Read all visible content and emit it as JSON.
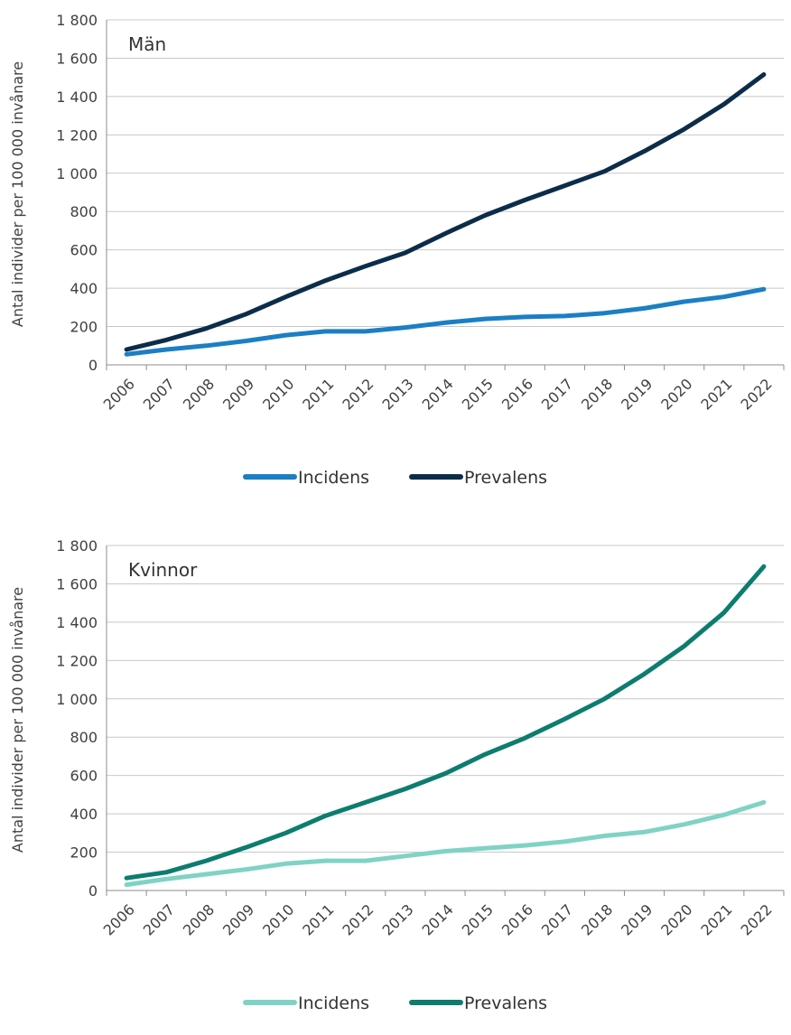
{
  "chart_data": [
    {
      "type": "line",
      "title": "Män",
      "ylabel": "Antal individer per 100 000 invånare",
      "xlabel": "",
      "ylim": [
        0,
        1800
      ],
      "yticks": [
        0,
        200,
        400,
        600,
        800,
        1000,
        1200,
        1400,
        1600,
        1800
      ],
      "ytick_labels": [
        "0",
        "200",
        "400",
        "600",
        "800",
        "1 000",
        "1 200",
        "1 400",
        "1 600",
        "1 800"
      ],
      "categories": [
        "2006",
        "2007",
        "2008",
        "2009",
        "2010",
        "2011",
        "2012",
        "2013",
        "2014",
        "2015",
        "2016",
        "2017",
        "2018",
        "2019",
        "2020",
        "2021",
        "2022"
      ],
      "series": [
        {
          "name": "Incidens",
          "color": "#1b7fc4",
          "values": [
            55,
            80,
            100,
            125,
            155,
            175,
            175,
            195,
            220,
            240,
            250,
            255,
            270,
            295,
            330,
            355,
            395
          ]
        },
        {
          "name": "Prevalens",
          "color": "#0b2d4a",
          "values": [
            80,
            130,
            190,
            265,
            355,
            440,
            515,
            585,
            685,
            780,
            860,
            935,
            1010,
            1115,
            1230,
            1360,
            1515
          ]
        }
      ],
      "legend": "bottom-center",
      "grid": true
    },
    {
      "type": "line",
      "title": "Kvinnor",
      "ylabel": "Antal individer per 100 000 invånare",
      "xlabel": "",
      "ylim": [
        0,
        1800
      ],
      "yticks": [
        0,
        200,
        400,
        600,
        800,
        1000,
        1200,
        1400,
        1600,
        1800
      ],
      "ytick_labels": [
        "0",
        "200",
        "400",
        "600",
        "800",
        "1 000",
        "1 200",
        "1 400",
        "1 600",
        "1 800"
      ],
      "categories": [
        "2006",
        "2007",
        "2008",
        "2009",
        "2010",
        "2011",
        "2012",
        "2013",
        "2014",
        "2015",
        "2016",
        "2017",
        "2018",
        "2019",
        "2020",
        "2021",
        "2022"
      ],
      "series": [
        {
          "name": "Incidens",
          "color": "#7fd3c4",
          "values": [
            30,
            60,
            85,
            110,
            140,
            155,
            155,
            180,
            205,
            220,
            235,
            255,
            285,
            305,
            345,
            395,
            460
          ]
        },
        {
          "name": "Prevalens",
          "color": "#0c7d6f",
          "values": [
            65,
            95,
            155,
            225,
            300,
            390,
            460,
            530,
            610,
            710,
            795,
            895,
            1000,
            1130,
            1275,
            1450,
            1690
          ]
        }
      ],
      "legend": "bottom-center",
      "grid": true
    }
  ]
}
